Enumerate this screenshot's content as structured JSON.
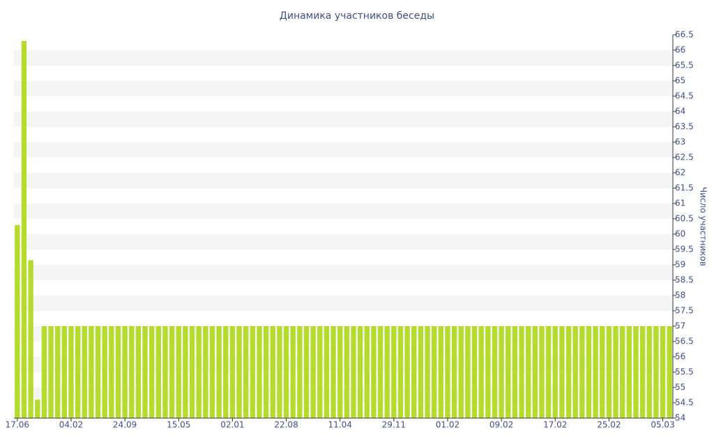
{
  "chart_data": {
    "type": "bar",
    "title": "Динамика участников беседы",
    "y_label": "Число участников",
    "color": "#b5dc2d",
    "grid": true,
    "categories": [
      "17.06",
      null,
      null,
      null,
      null,
      null,
      null,
      null,
      "04.02",
      null,
      null,
      null,
      null,
      null,
      null,
      null,
      "24.09",
      null,
      null,
      null,
      null,
      null,
      null,
      null,
      "15.05",
      null,
      null,
      null,
      null,
      null,
      null,
      null,
      "02.01",
      null,
      null,
      null,
      null,
      null,
      null,
      null,
      "22.08",
      null,
      null,
      null,
      null,
      null,
      null,
      null,
      "11.04",
      null,
      null,
      null,
      null,
      null,
      null,
      null,
      "29.11",
      null,
      null,
      null,
      null,
      null,
      null,
      null,
      "01.02",
      null,
      null,
      null,
      null,
      null,
      null,
      null,
      "09.02",
      null,
      null,
      null,
      null,
      null,
      null,
      null,
      "17.02",
      null,
      null,
      null,
      null,
      null,
      null,
      null,
      "25.02",
      null,
      null,
      null,
      null,
      null,
      null,
      null,
      "05.03",
      null
    ],
    "values": [
      60.3,
      66.3,
      59.15,
      54.6,
      57,
      57,
      57,
      57,
      57,
      57,
      57,
      57,
      57,
      57,
      57,
      57,
      57,
      57,
      57,
      57,
      57,
      57,
      57,
      57,
      57,
      57,
      57,
      57,
      57,
      57,
      57,
      57,
      57,
      57,
      57,
      57,
      57,
      57,
      57,
      57,
      57,
      57,
      57,
      57,
      57,
      57,
      57,
      57,
      57,
      57,
      57,
      57,
      57,
      57,
      57,
      57,
      57,
      57,
      57,
      57,
      57,
      57,
      57,
      57,
      57,
      57,
      57,
      57,
      57,
      57,
      57,
      57,
      57,
      57,
      57,
      57,
      57,
      57,
      57,
      57,
      57,
      57,
      57,
      57,
      57,
      57,
      57,
      57,
      57,
      57,
      57,
      57,
      57,
      57,
      57,
      57,
      57,
      57
    ],
    "ylim": [
      54,
      66.5
    ],
    "yticks": [
      54,
      54.5,
      55,
      55.5,
      56,
      56.5,
      57,
      57.5,
      58,
      58.5,
      59,
      59.5,
      60,
      60.5,
      61,
      61.5,
      62,
      62.5,
      63,
      63.5,
      64,
      64.5,
      65,
      65.5,
      66,
      66.5
    ]
  }
}
